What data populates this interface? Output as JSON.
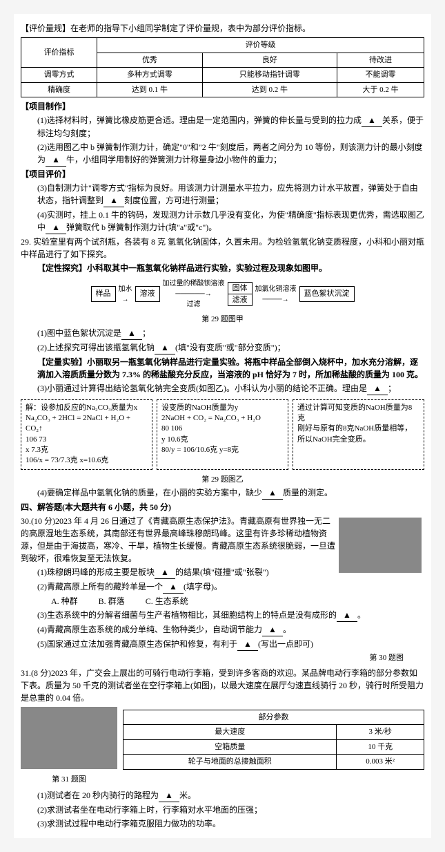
{
  "header": {
    "title": "【评价量规】在老师的指导下小组同学制定了评价量规，表中为部分评价指标。"
  },
  "eval_table": {
    "h1": "评价指标",
    "h2": "评价等级",
    "c1": "优秀",
    "c2": "良好",
    "c3": "待改进",
    "r1": "调零方式",
    "r1a": "多种方式调零",
    "r1b": "只能移动指针调零",
    "r1c": "不能调零",
    "r2": "精确度",
    "r2a": "达到 0.1 牛",
    "r2b": "达到 0.2 牛",
    "r2c": "大于 0.2 牛"
  },
  "project_make": {
    "title": "【项目制作】",
    "p1": "(1)选择材料时，弹簧比橡皮筋更合适。理由是一定范围内，弹簧的伸长量与受到的拉力成",
    "p1b": "关系，便于标注均匀刻度；",
    "p2": "(2)选用图乙中 b 弹簧制作测力计，确定\"0\"和\"2 牛\"刻度后，两者之间分为 10 等份，则该测力计的最小刻度为",
    "p2b": "牛，小组同学用制好的弹簧测力计称量身边小物件的重力；"
  },
  "project_eval": {
    "title": "【项目评价】",
    "p3": "(3)自制测力计\"调零方式\"指标为良好。用该测力计测量水平拉力，应先将测力计水平放置，弹簧处于自由状态，指针调整到",
    "p3b": "刻度位置，方可进行测量",
    "p4a": "(4)实测时，挂上 0.1 牛的钩码，发现测力计示数几乎没有变化，为使\"精确度\"指标表现更优秀，需选取图乙中",
    "p4b": "弹簧取代 b 弹簧制作测力计(填\"a\"或\"c\")"
  },
  "q29": {
    "stem": "29. 实验室里有两个试剂瓶，各装有 8 克 氢氧化钠固体，久置未用。为检验氢氧化钠变质程度，小科和小丽对瓶中样品进行了如下探究。",
    "qual_title": "【定性探究】小科取其中一瓶氢氧化钠样品进行实验，实验过程及现象如图甲。",
    "flow": {
      "b1": "样品",
      "a1": "加水",
      "b2": "溶液",
      "a2": "加过量的稀酸钡溶液",
      "a2b": "过滤",
      "b3": "固体",
      "b4": "滤液",
      "a3": "加氯化铜溶液",
      "b5": "蓝色絮状沉淀"
    },
    "cap1": "第 29 题图甲",
    "p1": "(1)图中蓝色絮状沉淀是",
    "p2": "(2)上述探究可得出该瓶氢氧化钠",
    "p2b": "(填\"没有变质\"或\"部分变质\")；",
    "quan_title": "【定量实验】小丽取另一瓶氢氧化钠样品进行定量实验。将瓶中样品全部倒入烧杯中，加水充分溶解，逐滴加入溶质质量分数为 7.3% 的稀盐酸充分反应，当溶液的 pH 恰好为 7 时，所加稀盐酸的质量为 100 克。",
    "p3": "(3)小丽通过计算得出结论氢氧化钠完全变质(如图乙)。小科认为小丽的结论不正确。理由是",
    "hw1a": "解：设参加反应的Na₂CO₃质量为x",
    "hw1b": "Na₂CO₃ + 2HCl = 2NaCl + H₂O + CO₂↑",
    "hw1c": "106        73",
    "hw1d": "x          7.3克",
    "hw1e": "106/x = 73/7.3克   x=10.6克",
    "hw2a": "设变质的NaOH质量为y",
    "hw2b": "2NaOH + CO₂ = Na₂CO₃ + H₂O",
    "hw2c": "80              106",
    "hw2d": "y               10.6克",
    "hw2e": "80/y = 106/10.6克   y=8克",
    "hw3a": "通过计算可知变质的NaOH质量为8克",
    "hw3b": "刚好与原有的8克NaOH质量相等，",
    "hw3c": "所以NaOH完全变质。",
    "cap2": "第 29 题图乙",
    "p4": "(4)要确定样品中氢氧化钠的质量，在小丽的实验方案中，缺少",
    "p4b": "质量的测定。"
  },
  "sec4": {
    "title": "四、解答题(本大题共有 6 小题，共 50 分)"
  },
  "q30": {
    "stem": "30.(10 分)2023 年 4 月 26 日通过了《青藏高原生态保护法》。青藏高原有世界独一无二的高原湿地生态系统，其南部还有世界最高峰珠穆朗玛峰。这里有许多珍稀动植物资源，但是由于海拔高，寒冷、干旱，植物生长缓慢。青藏高原生态系统很脆弱，一旦遭到破坏，很难恢复至无法恢复。",
    "p1": "(1)珠穆朗玛峰的形成主要是板块",
    "p1b": "的结果(填\"碰撞\"或\"张裂\")",
    "p2": "(2)青藏高原上所有的藏羚羊是一个",
    "p2b": "(填字母)。",
    "optA": "A. 种群",
    "optB": "B. 群落",
    "optC": "C. 生态系统",
    "p3": "(3)生态系统中的分解者细菌与生产者植物相比，其细胞结构上的特点是没有成形的",
    "p4": "(4)青藏高原生态系统的成分单纯、生物种类少，自动调节能力",
    "p5": "(5)国家通过立法加强青藏高原生态保护和修复，有利于",
    "p5b": "(写出一点即可)",
    "cap": "第 30 题图"
  },
  "q31": {
    "stem": "31.(8 分)2023 年，广交会上展出的可骑行电动行李箱，受到许多客商的欢迎。某品牌电动行李箱的部分参数如下表。质量为 50 千克的测试者坐在空行李箱上(如图)，以最大速度在展厅匀速直线骑行 20 秒，骑行时所受阻力是总重的 0.04 倍。",
    "params": {
      "title": "部分参数",
      "r1": "最大速度",
      "v1": "3 米/秒",
      "r2": "空箱质量",
      "v2": "10 千克",
      "r3": "轮子与地面的总接触面积",
      "v3": "0.003 米²"
    },
    "cap": "第 31 题图",
    "p1": "(1)测试者在 20 秒内骑行的路程为",
    "p1b": "米。",
    "p2": "(2)求测试者坐在电动行李箱上时，行李箱对水平地面的压强；",
    "p3": "(3)求测试过程中电动行李箱克服阻力做功的功率。"
  }
}
